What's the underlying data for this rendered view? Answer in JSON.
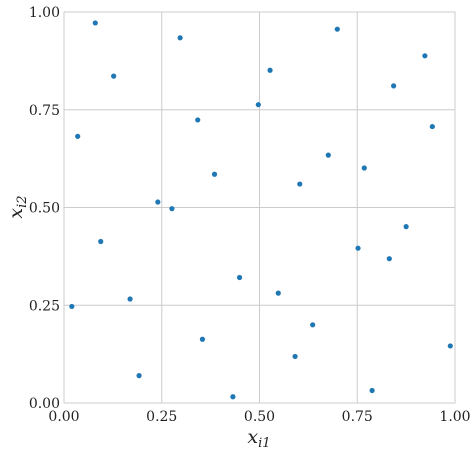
{
  "chart_data": {
    "type": "scatter",
    "title": "",
    "xlabel": {
      "main": "x",
      "sub": "i1"
    },
    "ylabel": {
      "main": "x",
      "sub": "i2"
    },
    "xlim": [
      0,
      1
    ],
    "ylim": [
      0,
      1
    ],
    "xticks": [
      "0.00",
      "0.25",
      "0.50",
      "0.75",
      "1.00"
    ],
    "yticks": [
      "0.00",
      "0.25",
      "0.50",
      "0.75",
      "1.00"
    ],
    "grid": true,
    "marker_color": "#1f77b4",
    "points": [
      [
        0.08,
        0.972
      ],
      [
        0.297,
        0.934
      ],
      [
        0.699,
        0.956
      ],
      [
        0.923,
        0.888
      ],
      [
        0.127,
        0.836
      ],
      [
        0.527,
        0.851
      ],
      [
        0.843,
        0.811
      ],
      [
        0.497,
        0.763
      ],
      [
        0.342,
        0.724
      ],
      [
        0.942,
        0.707
      ],
      [
        0.035,
        0.682
      ],
      [
        0.676,
        0.634
      ],
      [
        0.768,
        0.601
      ],
      [
        0.385,
        0.585
      ],
      [
        0.603,
        0.56
      ],
      [
        0.24,
        0.514
      ],
      [
        0.276,
        0.497
      ],
      [
        0.875,
        0.451
      ],
      [
        0.094,
        0.413
      ],
      [
        0.752,
        0.396
      ],
      [
        0.832,
        0.369
      ],
      [
        0.449,
        0.321
      ],
      [
        0.548,
        0.281
      ],
      [
        0.169,
        0.266
      ],
      [
        0.02,
        0.247
      ],
      [
        0.636,
        0.2
      ],
      [
        0.354,
        0.163
      ],
      [
        0.988,
        0.146
      ],
      [
        0.591,
        0.119
      ],
      [
        0.192,
        0.07
      ],
      [
        0.788,
        0.032
      ],
      [
        0.432,
        0.016
      ]
    ]
  }
}
